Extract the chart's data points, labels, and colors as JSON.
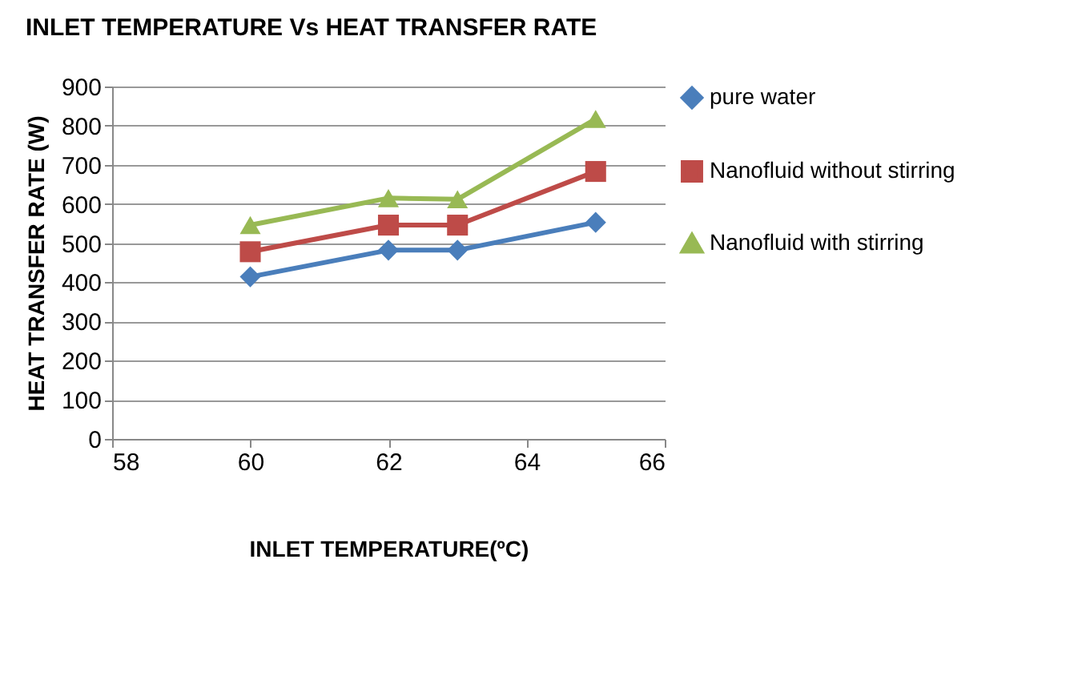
{
  "chart_data": {
    "type": "line",
    "title": "INLET TEMPERATURE Vs HEAT TRANSFER RATE",
    "xlabel": "INLET TEMPERATURE(ºC)",
    "ylabel": "HEAT TRANSFER RATE (W)",
    "x": [
      60,
      62,
      63,
      65
    ],
    "series": [
      {
        "name": "pure water",
        "color": "#4a7ebb",
        "marker": "diamond",
        "values": [
          414,
          482,
          482,
          553
        ]
      },
      {
        "name": "Nanofluid without stirring",
        "color": "#be4b48",
        "marker": "square",
        "values": [
          478,
          546,
          546,
          683
        ]
      },
      {
        "name": "Nanofluid with stirring",
        "color": "#98b954",
        "marker": "triangle",
        "values": [
          546,
          615,
          612,
          817
        ]
      }
    ],
    "xlim": [
      58,
      66
    ],
    "xticks": [
      58,
      60,
      62,
      64,
      66
    ],
    "ylim": [
      0,
      900
    ],
    "yticks": [
      0,
      100,
      200,
      300,
      400,
      500,
      600,
      700,
      800,
      900
    ],
    "grid": "y",
    "legend": "right",
    "line_style": "solid"
  }
}
